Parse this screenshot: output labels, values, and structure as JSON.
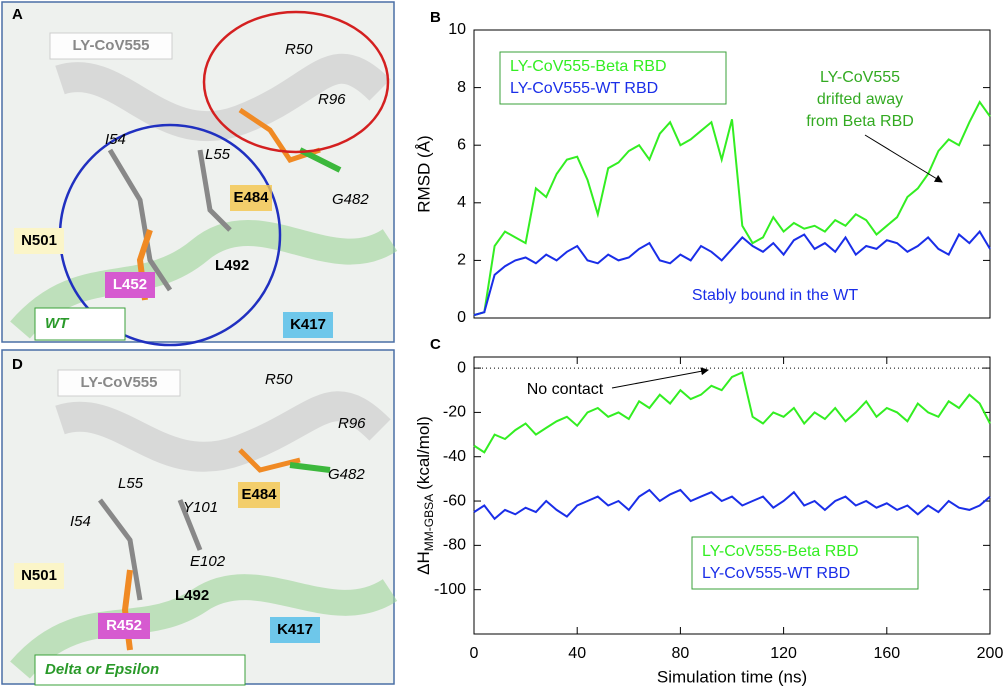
{
  "chart_data": [
    {
      "type": "line",
      "panel_label": "B",
      "ylabel": "RMSD (Å)",
      "x": [
        0,
        4,
        8,
        12,
        16,
        20,
        24,
        28,
        32,
        36,
        40,
        44,
        48,
        52,
        56,
        60,
        64,
        68,
        72,
        76,
        80,
        84,
        88,
        92,
        96,
        100,
        104,
        108,
        112,
        116,
        120,
        124,
        128,
        132,
        136,
        140,
        144,
        148,
        152,
        156,
        160,
        164,
        168,
        172,
        176,
        180,
        184,
        188,
        192,
        196,
        200
      ],
      "series": [
        {
          "name": "LY-CoV555-Beta RBD",
          "color": "#33ee22",
          "values": [
            0.1,
            0.2,
            2.5,
            3.0,
            2.8,
            2.6,
            4.5,
            4.2,
            5.0,
            5.5,
            5.6,
            4.8,
            3.6,
            5.2,
            5.4,
            5.8,
            6.0,
            5.5,
            6.4,
            6.8,
            6.0,
            6.2,
            6.5,
            6.8,
            5.5,
            6.9,
            3.2,
            2.6,
            2.8,
            3.5,
            3.0,
            3.3,
            3.1,
            3.2,
            3.0,
            3.4,
            3.2,
            3.6,
            3.4,
            2.9,
            3.2,
            3.5,
            4.2,
            4.5,
            5.0,
            5.8,
            6.2,
            6.0,
            6.8,
            7.5,
            7.0
          ]
        },
        {
          "name": "LY-CoV555-WT RBD",
          "color": "#1a2ee8",
          "values": [
            0.1,
            0.2,
            1.5,
            1.8,
            2.0,
            2.1,
            1.9,
            2.2,
            2.0,
            2.3,
            2.5,
            2.0,
            1.9,
            2.2,
            2.0,
            2.1,
            2.4,
            2.6,
            2.0,
            1.9,
            2.2,
            2.0,
            2.5,
            2.3,
            2.0,
            2.4,
            2.8,
            2.5,
            2.3,
            2.6,
            2.2,
            2.7,
            2.9,
            2.4,
            2.6,
            2.3,
            2.8,
            2.2,
            2.5,
            2.4,
            2.7,
            2.6,
            2.3,
            2.5,
            2.8,
            2.4,
            2.2,
            2.9,
            2.6,
            3.0,
            2.4
          ]
        }
      ],
      "xlim": [
        0,
        200
      ],
      "ylim": [
        0,
        10
      ],
      "yticks": [
        0,
        2,
        4,
        6,
        8,
        10
      ],
      "legend": "upper left",
      "annotations": [
        {
          "lines": [
            "LY-CoV555",
            "drifted away",
            "from Beta RBD"
          ],
          "color": "#33aa22"
        },
        {
          "lines": [
            "Stably bound in the WT"
          ],
          "color": "#1a2ee8"
        }
      ]
    },
    {
      "type": "line",
      "panel_label": "C",
      "xlabel": "Simulation time (ns)",
      "ylabel": {
        "main": "ΔH",
        "sub": "MM-GBSA",
        "unit": "(kcal/mol)"
      },
      "x": [
        0,
        4,
        8,
        12,
        16,
        20,
        24,
        28,
        32,
        36,
        40,
        44,
        48,
        52,
        56,
        60,
        64,
        68,
        72,
        76,
        80,
        84,
        88,
        92,
        96,
        100,
        104,
        108,
        112,
        116,
        120,
        124,
        128,
        132,
        136,
        140,
        144,
        148,
        152,
        156,
        160,
        164,
        168,
        172,
        176,
        180,
        184,
        188,
        192,
        196,
        200
      ],
      "series": [
        {
          "name": "LY-CoV555-Beta RBD",
          "color": "#33ee22",
          "values": [
            -35,
            -38,
            -30,
            -32,
            -28,
            -25,
            -30,
            -27,
            -24,
            -22,
            -26,
            -20,
            -18,
            -22,
            -20,
            -23,
            -15,
            -18,
            -12,
            -16,
            -10,
            -14,
            -12,
            -8,
            -10,
            -4,
            -2,
            -22,
            -25,
            -20,
            -22,
            -18,
            -25,
            -20,
            -23,
            -18,
            -24,
            -20,
            -15,
            -22,
            -18,
            -20,
            -24,
            -16,
            -20,
            -22,
            -15,
            -18,
            -12,
            -16,
            -25
          ]
        },
        {
          "name": "LY-CoV555-WT RBD",
          "color": "#1a2ee8",
          "values": [
            -65,
            -62,
            -68,
            -64,
            -66,
            -63,
            -65,
            -60,
            -64,
            -67,
            -62,
            -60,
            -58,
            -62,
            -60,
            -64,
            -58,
            -55,
            -60,
            -57,
            -55,
            -60,
            -58,
            -56,
            -60,
            -58,
            -62,
            -60,
            -58,
            -63,
            -60,
            -56,
            -62,
            -60,
            -64,
            -60,
            -58,
            -62,
            -60,
            -63,
            -61,
            -64,
            -62,
            -66,
            -62,
            -65,
            -60,
            -63,
            -64,
            -62,
            -58
          ]
        }
      ],
      "xlim": [
        0,
        200
      ],
      "xticks": [
        0,
        40,
        80,
        120,
        160,
        200
      ],
      "ylim": [
        -120,
        5
      ],
      "yticks": [
        -100,
        -80,
        -60,
        -40,
        -20,
        0
      ],
      "reference_line": 0,
      "legend": "lower right",
      "annotations": [
        {
          "lines": [
            "No contact"
          ],
          "color": "#000000"
        }
      ]
    }
  ],
  "structure_panels": [
    {
      "letter": "A",
      "antibody": "LY-CoV555",
      "variant": "WT",
      "residues": [
        "R50",
        "R96",
        "G482",
        "E484",
        "I54",
        "L55",
        "N501",
        "L452",
        "L492",
        "K417"
      ]
    },
    {
      "letter": "D",
      "antibody": "LY-CoV555",
      "variant": "Delta or Epsilon",
      "residues": [
        "R50",
        "R96",
        "G482",
        "E484",
        "L55",
        "Y101",
        "I54",
        "E102",
        "N501",
        "L492",
        "R452",
        "K417"
      ]
    }
  ]
}
